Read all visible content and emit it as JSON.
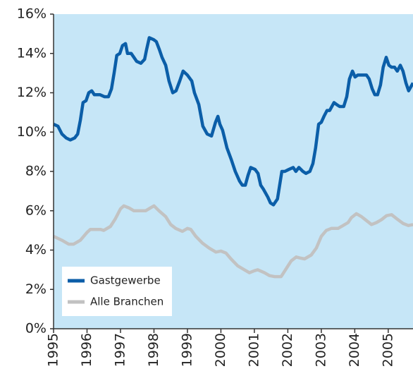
{
  "chart_data": {
    "type": "line",
    "series": [
      {
        "name": "Gastgewerbe",
        "color": "#0b5ea8",
        "x": [
          1995.0,
          1995.13,
          1995.25,
          1995.38,
          1995.5,
          1995.63,
          1995.72,
          1995.8,
          1995.88,
          1995.97,
          1996.05,
          1996.14,
          1996.22,
          1996.39,
          1996.52,
          1996.64,
          1996.73,
          1996.81,
          1996.89,
          1996.98,
          1997.06,
          1997.15,
          1997.21,
          1997.32,
          1997.4,
          1997.48,
          1997.61,
          1997.72,
          1997.78,
          1997.86,
          1997.99,
          1998.07,
          1998.16,
          1998.24,
          1998.35,
          1998.45,
          1998.56,
          1998.66,
          1998.77,
          1998.87,
          1999.0,
          1999.13,
          1999.21,
          1999.34,
          1999.46,
          1999.59,
          1999.72,
          1999.84,
          1999.91,
          1999.97,
          2000.05,
          2000.18,
          2000.31,
          2000.43,
          2000.56,
          2000.64,
          2000.73,
          2000.81,
          2000.89,
          2001.02,
          2001.11,
          2001.19,
          2001.27,
          2001.4,
          2001.48,
          2001.57,
          2001.69,
          2001.82,
          2001.91,
          2002.03,
          2002.16,
          2002.24,
          2002.33,
          2002.45,
          2002.54,
          2002.66,
          2002.75,
          2002.83,
          2002.92,
          2003.0,
          2003.08,
          2003.17,
          2003.25,
          2003.38,
          2003.46,
          2003.55,
          2003.67,
          2003.76,
          2003.84,
          2003.93,
          2004.01,
          2004.09,
          2004.22,
          2004.35,
          2004.43,
          2004.52,
          2004.6,
          2004.68,
          2004.77,
          2004.85,
          2004.94,
          2005.02,
          2005.1,
          2005.19,
          2005.27,
          2005.36,
          2005.44,
          2005.53,
          2005.61,
          2005.74
        ],
        "values": [
          10.4,
          10.3,
          9.9,
          9.7,
          9.6,
          9.7,
          9.9,
          10.6,
          11.5,
          11.6,
          12.0,
          12.1,
          11.9,
          11.9,
          11.8,
          11.8,
          12.2,
          13.0,
          13.9,
          14.0,
          14.4,
          14.5,
          14.0,
          14.0,
          13.8,
          13.6,
          13.5,
          13.7,
          14.2,
          14.8,
          14.7,
          14.6,
          14.2,
          13.8,
          13.4,
          12.6,
          12.0,
          12.1,
          12.6,
          13.1,
          12.9,
          12.6,
          12.0,
          11.4,
          10.3,
          9.9,
          9.8,
          10.5,
          10.8,
          10.4,
          10.1,
          9.2,
          8.6,
          8.0,
          7.5,
          7.3,
          7.3,
          7.8,
          8.2,
          8.1,
          7.9,
          7.3,
          7.1,
          6.7,
          6.4,
          6.3,
          6.6,
          8.0,
          8.0,
          8.1,
          8.2,
          8.0,
          8.2,
          8.0,
          7.9,
          8.0,
          8.4,
          9.2,
          10.4,
          10.5,
          10.8,
          11.1,
          11.1,
          11.5,
          11.4,
          11.3,
          11.3,
          11.8,
          12.7,
          13.1,
          12.8,
          12.9,
          12.9,
          12.9,
          12.7,
          12.2,
          11.9,
          11.9,
          12.4,
          13.3,
          13.8,
          13.4,
          13.3,
          13.3,
          13.1,
          13.4,
          13.1,
          12.5,
          12.1,
          12.5
        ]
      },
      {
        "name": "Alle Branchen",
        "color": "#c2c2c2",
        "x": [
          1995.0,
          1995.25,
          1995.45,
          1995.6,
          1995.8,
          1996.0,
          1996.1,
          1996.4,
          1996.5,
          1996.7,
          1996.85,
          1997.0,
          1997.1,
          1997.25,
          1997.4,
          1997.75,
          1997.9,
          1998.0,
          1998.15,
          1998.35,
          1998.5,
          1998.65,
          1998.85,
          1999.0,
          1999.1,
          1999.25,
          1999.45,
          1999.65,
          1999.85,
          2000.0,
          2000.15,
          2000.3,
          2000.5,
          2000.7,
          2000.85,
          2001.0,
          2001.1,
          2001.3,
          2001.45,
          2001.6,
          2001.8,
          2001.95,
          2002.1,
          2002.25,
          2002.35,
          2002.5,
          2002.7,
          2002.85,
          2003.0,
          2003.15,
          2003.3,
          2003.5,
          2003.65,
          2003.8,
          2003.9,
          2004.05,
          2004.2,
          2004.35,
          2004.5,
          2004.65,
          2004.8,
          2004.95,
          2005.1,
          2005.25,
          2005.45,
          2005.6,
          2005.74
        ],
        "values": [
          4.7,
          4.5,
          4.3,
          4.3,
          4.5,
          4.9,
          5.05,
          5.05,
          5.0,
          5.2,
          5.6,
          6.1,
          6.25,
          6.15,
          6.0,
          6.0,
          6.15,
          6.25,
          6.0,
          5.7,
          5.3,
          5.1,
          4.95,
          5.1,
          5.05,
          4.7,
          4.35,
          4.1,
          3.9,
          3.95,
          3.85,
          3.55,
          3.2,
          3.0,
          2.85,
          2.95,
          3.0,
          2.85,
          2.7,
          2.65,
          2.65,
          3.05,
          3.45,
          3.65,
          3.6,
          3.55,
          3.75,
          4.1,
          4.7,
          5.0,
          5.1,
          5.1,
          5.25,
          5.4,
          5.65,
          5.85,
          5.7,
          5.5,
          5.3,
          5.4,
          5.55,
          5.75,
          5.8,
          5.6,
          5.35,
          5.25,
          5.3
        ]
      }
    ],
    "xlim": [
      1995,
      2005.74
    ],
    "xticks": [
      1995,
      1996,
      1997,
      1998,
      1999,
      2000,
      2001,
      2002,
      2003,
      2004,
      2005
    ],
    "ylim": [
      0,
      16
    ],
    "yticks": [
      {
        "value": 0,
        "label": "0%"
      },
      {
        "value": 2,
        "label": "2%"
      },
      {
        "value": 4,
        "label": "4%"
      },
      {
        "value": 6,
        "label": "6%"
      },
      {
        "value": 8,
        "label": "8%"
      },
      {
        "value": 10,
        "label": "10%"
      },
      {
        "value": 12,
        "label": "12%"
      },
      {
        "value": 14,
        "label": "14%"
      },
      {
        "value": 16,
        "label": "16%"
      }
    ],
    "background": "#c6e6f7",
    "legend": "lower left"
  }
}
